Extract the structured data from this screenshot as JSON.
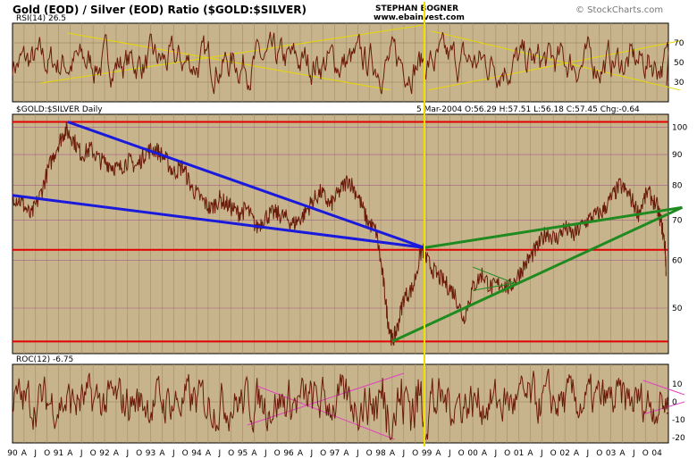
{
  "header": {
    "title": "Gold (EOD) / Silver (EOD) Ratio ($GOLD:$SILVER)",
    "author": "STEPHAN BOGNER",
    "website": "www.ebainvest.com",
    "copyright": "© StockCharts.com"
  },
  "chart_data": [
    {
      "type": "line",
      "panel": "rsi",
      "label": "RSI(14)",
      "last_value_text": "26.5",
      "ylim": [
        10,
        90
      ],
      "y_ticks": [
        "30",
        "50",
        "70"
      ],
      "levels": [
        30,
        50,
        70
      ],
      "color": "#6a1a0a",
      "trendlines": [
        {
          "x1": 1990.6,
          "y1": 29,
          "x2": 1998.9,
          "y2": 88
        },
        {
          "x1": 1991.2,
          "y1": 80,
          "x2": 1998.2,
          "y2": 22
        },
        {
          "x1": 1999.05,
          "y1": 22,
          "x2": 2004.5,
          "y2": 72
        },
        {
          "x1": 1999.1,
          "y1": 82,
          "x2": 2004.5,
          "y2": 22
        }
      ],
      "trend_color": "#e6d800"
    },
    {
      "type": "line",
      "panel": "price",
      "label": "$GOLD:$SILVER Daily",
      "date": "5 Mar-2004",
      "ohlc": {
        "O": "56.29",
        "H": "57.51",
        "L": "56.18",
        "C": "57.45",
        "Chg": "-0.64"
      },
      "ohlc_labels": {
        "O": "O:",
        "H": "H:",
        "L": "L:",
        "C": "C:",
        "Chg": "Chg:"
      },
      "scale": "log",
      "ylim": [
        42,
        105
      ],
      "y_ticks": [
        "50",
        "60",
        "70",
        "80",
        "90",
        "100"
      ],
      "color": "#6a1a0a",
      "points": [
        [
          1990.0,
          77
        ],
        [
          1990.2,
          75
        ],
        [
          1990.4,
          71
        ],
        [
          1990.6,
          77
        ],
        [
          1990.8,
          86
        ],
        [
          1991.0,
          94
        ],
        [
          1991.15,
          99
        ],
        [
          1991.3,
          96
        ],
        [
          1991.5,
          90
        ],
        [
          1991.7,
          92
        ],
        [
          1991.9,
          88
        ],
        [
          1992.1,
          87
        ],
        [
          1992.3,
          85
        ],
        [
          1992.5,
          88
        ],
        [
          1992.7,
          86
        ],
        [
          1992.9,
          91
        ],
        [
          1993.1,
          92
        ],
        [
          1993.3,
          89
        ],
        [
          1993.5,
          84
        ],
        [
          1993.7,
          86
        ],
        [
          1993.9,
          79
        ],
        [
          1994.1,
          76
        ],
        [
          1994.3,
          73
        ],
        [
          1994.5,
          76
        ],
        [
          1994.7,
          74
        ],
        [
          1994.9,
          72
        ],
        [
          1995.1,
          73
        ],
        [
          1995.3,
          68
        ],
        [
          1995.5,
          71
        ],
        [
          1995.7,
          72
        ],
        [
          1995.9,
          71
        ],
        [
          1996.1,
          69
        ],
        [
          1996.3,
          71
        ],
        [
          1996.5,
          75
        ],
        [
          1996.7,
          78
        ],
        [
          1996.9,
          74
        ],
        [
          1997.1,
          78
        ],
        [
          1997.3,
          82
        ],
        [
          1997.5,
          77
        ],
        [
          1997.7,
          70
        ],
        [
          1997.9,
          67
        ],
        [
          1998.05,
          56
        ],
        [
          1998.15,
          48
        ],
        [
          1998.25,
          44
        ],
        [
          1998.35,
          46
        ],
        [
          1998.5,
          52
        ],
        [
          1998.7,
          54
        ],
        [
          1998.9,
          63
        ],
        [
          1999.0,
          60
        ],
        [
          1999.2,
          57
        ],
        [
          1999.4,
          55
        ],
        [
          1999.6,
          53
        ],
        [
          1999.8,
          48
        ],
        [
          2000.0,
          54
        ],
        [
          2000.2,
          57
        ],
        [
          2000.4,
          54
        ],
        [
          2000.6,
          55
        ],
        [
          2000.8,
          54
        ],
        [
          2001.0,
          57
        ],
        [
          2001.2,
          60
        ],
        [
          2001.4,
          63
        ],
        [
          2001.6,
          67
        ],
        [
          2001.8,
          65
        ],
        [
          2002.0,
          68
        ],
        [
          2002.2,
          66
        ],
        [
          2002.4,
          69
        ],
        [
          2002.6,
          71
        ],
        [
          2002.8,
          72
        ],
        [
          2003.0,
          76
        ],
        [
          2003.2,
          80
        ],
        [
          2003.4,
          77
        ],
        [
          2003.6,
          72
        ],
        [
          2003.8,
          78
        ],
        [
          2004.0,
          74
        ],
        [
          2004.1,
          69
        ],
        [
          2004.18,
          63
        ],
        [
          2004.2,
          57.45
        ]
      ],
      "horizontal_levels": [
        {
          "y": 102,
          "color": "#e00000"
        },
        {
          "y": 62.5,
          "color": "#e00000"
        },
        {
          "y": 44,
          "color": "#e00000"
        }
      ],
      "trendlines": [
        {
          "x1": 1991.2,
          "y1": 102,
          "x2": 1998.95,
          "y2": 63,
          "color": "#1a1adc"
        },
        {
          "x1": 1990.0,
          "y1": 77,
          "x2": 1998.95,
          "y2": 63,
          "color": "#1a1adc"
        },
        {
          "x1": 1998.95,
          "y1": 63,
          "x2": 2004.55,
          "y2": 73.5,
          "color": "#1f8a1f"
        },
        {
          "x1": 1998.25,
          "y1": 44,
          "x2": 2004.55,
          "y2": 73.5,
          "color": "#1f8a1f"
        },
        {
          "x1": 2000.0,
          "y1": 58.5,
          "x2": 2000.9,
          "y2": 55,
          "color": "#1f8a1f",
          "thin": true
        },
        {
          "x1": 2000.0,
          "y1": 53.5,
          "x2": 2000.9,
          "y2": 55,
          "color": "#1f8a1f",
          "thin": true
        }
      ],
      "vertical_markers": [
        1998.95
      ]
    },
    {
      "type": "line",
      "panel": "roc",
      "label": "ROC(12)",
      "last_value_text": "-6.75",
      "ylim": [
        -23,
        21
      ],
      "y_ticks": [
        "-20",
        "-10",
        "0",
        "10"
      ],
      "color": "#6a1a0a",
      "trendlines": [
        {
          "x1": 1995.1,
          "y1": -13,
          "x2": 1998.5,
          "y2": 16
        },
        {
          "x1": 1995.3,
          "y1": 9,
          "x2": 1998.3,
          "y2": -21
        },
        {
          "x1": 2003.7,
          "y1": 12,
          "x2": 2004.6,
          "y2": 4
        },
        {
          "x1": 2003.7,
          "y1": -7,
          "x2": 2004.6,
          "y2": 0
        }
      ],
      "trend_color": "#e040c0"
    }
  ],
  "x_axis": {
    "year_start": 1990.0,
    "year_end": 2004.25,
    "labels": [
      "90",
      "A",
      "J",
      "O",
      "91",
      "A",
      "J",
      "O",
      "92",
      "A",
      "J",
      "O",
      "93",
      "A",
      "J",
      "O",
      "94",
      "A",
      "J",
      "O",
      "95",
      "A",
      "J",
      "O",
      "96",
      "A",
      "J",
      "O",
      "97",
      "A",
      "J",
      "O",
      "98",
      "A",
      "J",
      "O",
      "99",
      "A",
      "J",
      "O",
      "00",
      "A",
      "J",
      "O",
      "01",
      "A",
      "J",
      "O",
      "02",
      "A",
      "J",
      "O",
      "03",
      "A",
      "J",
      "O",
      "04"
    ]
  },
  "colors": {
    "panel_bg": "#c8b48c",
    "grid": "#a08c68",
    "marker": "#f0e000"
  }
}
